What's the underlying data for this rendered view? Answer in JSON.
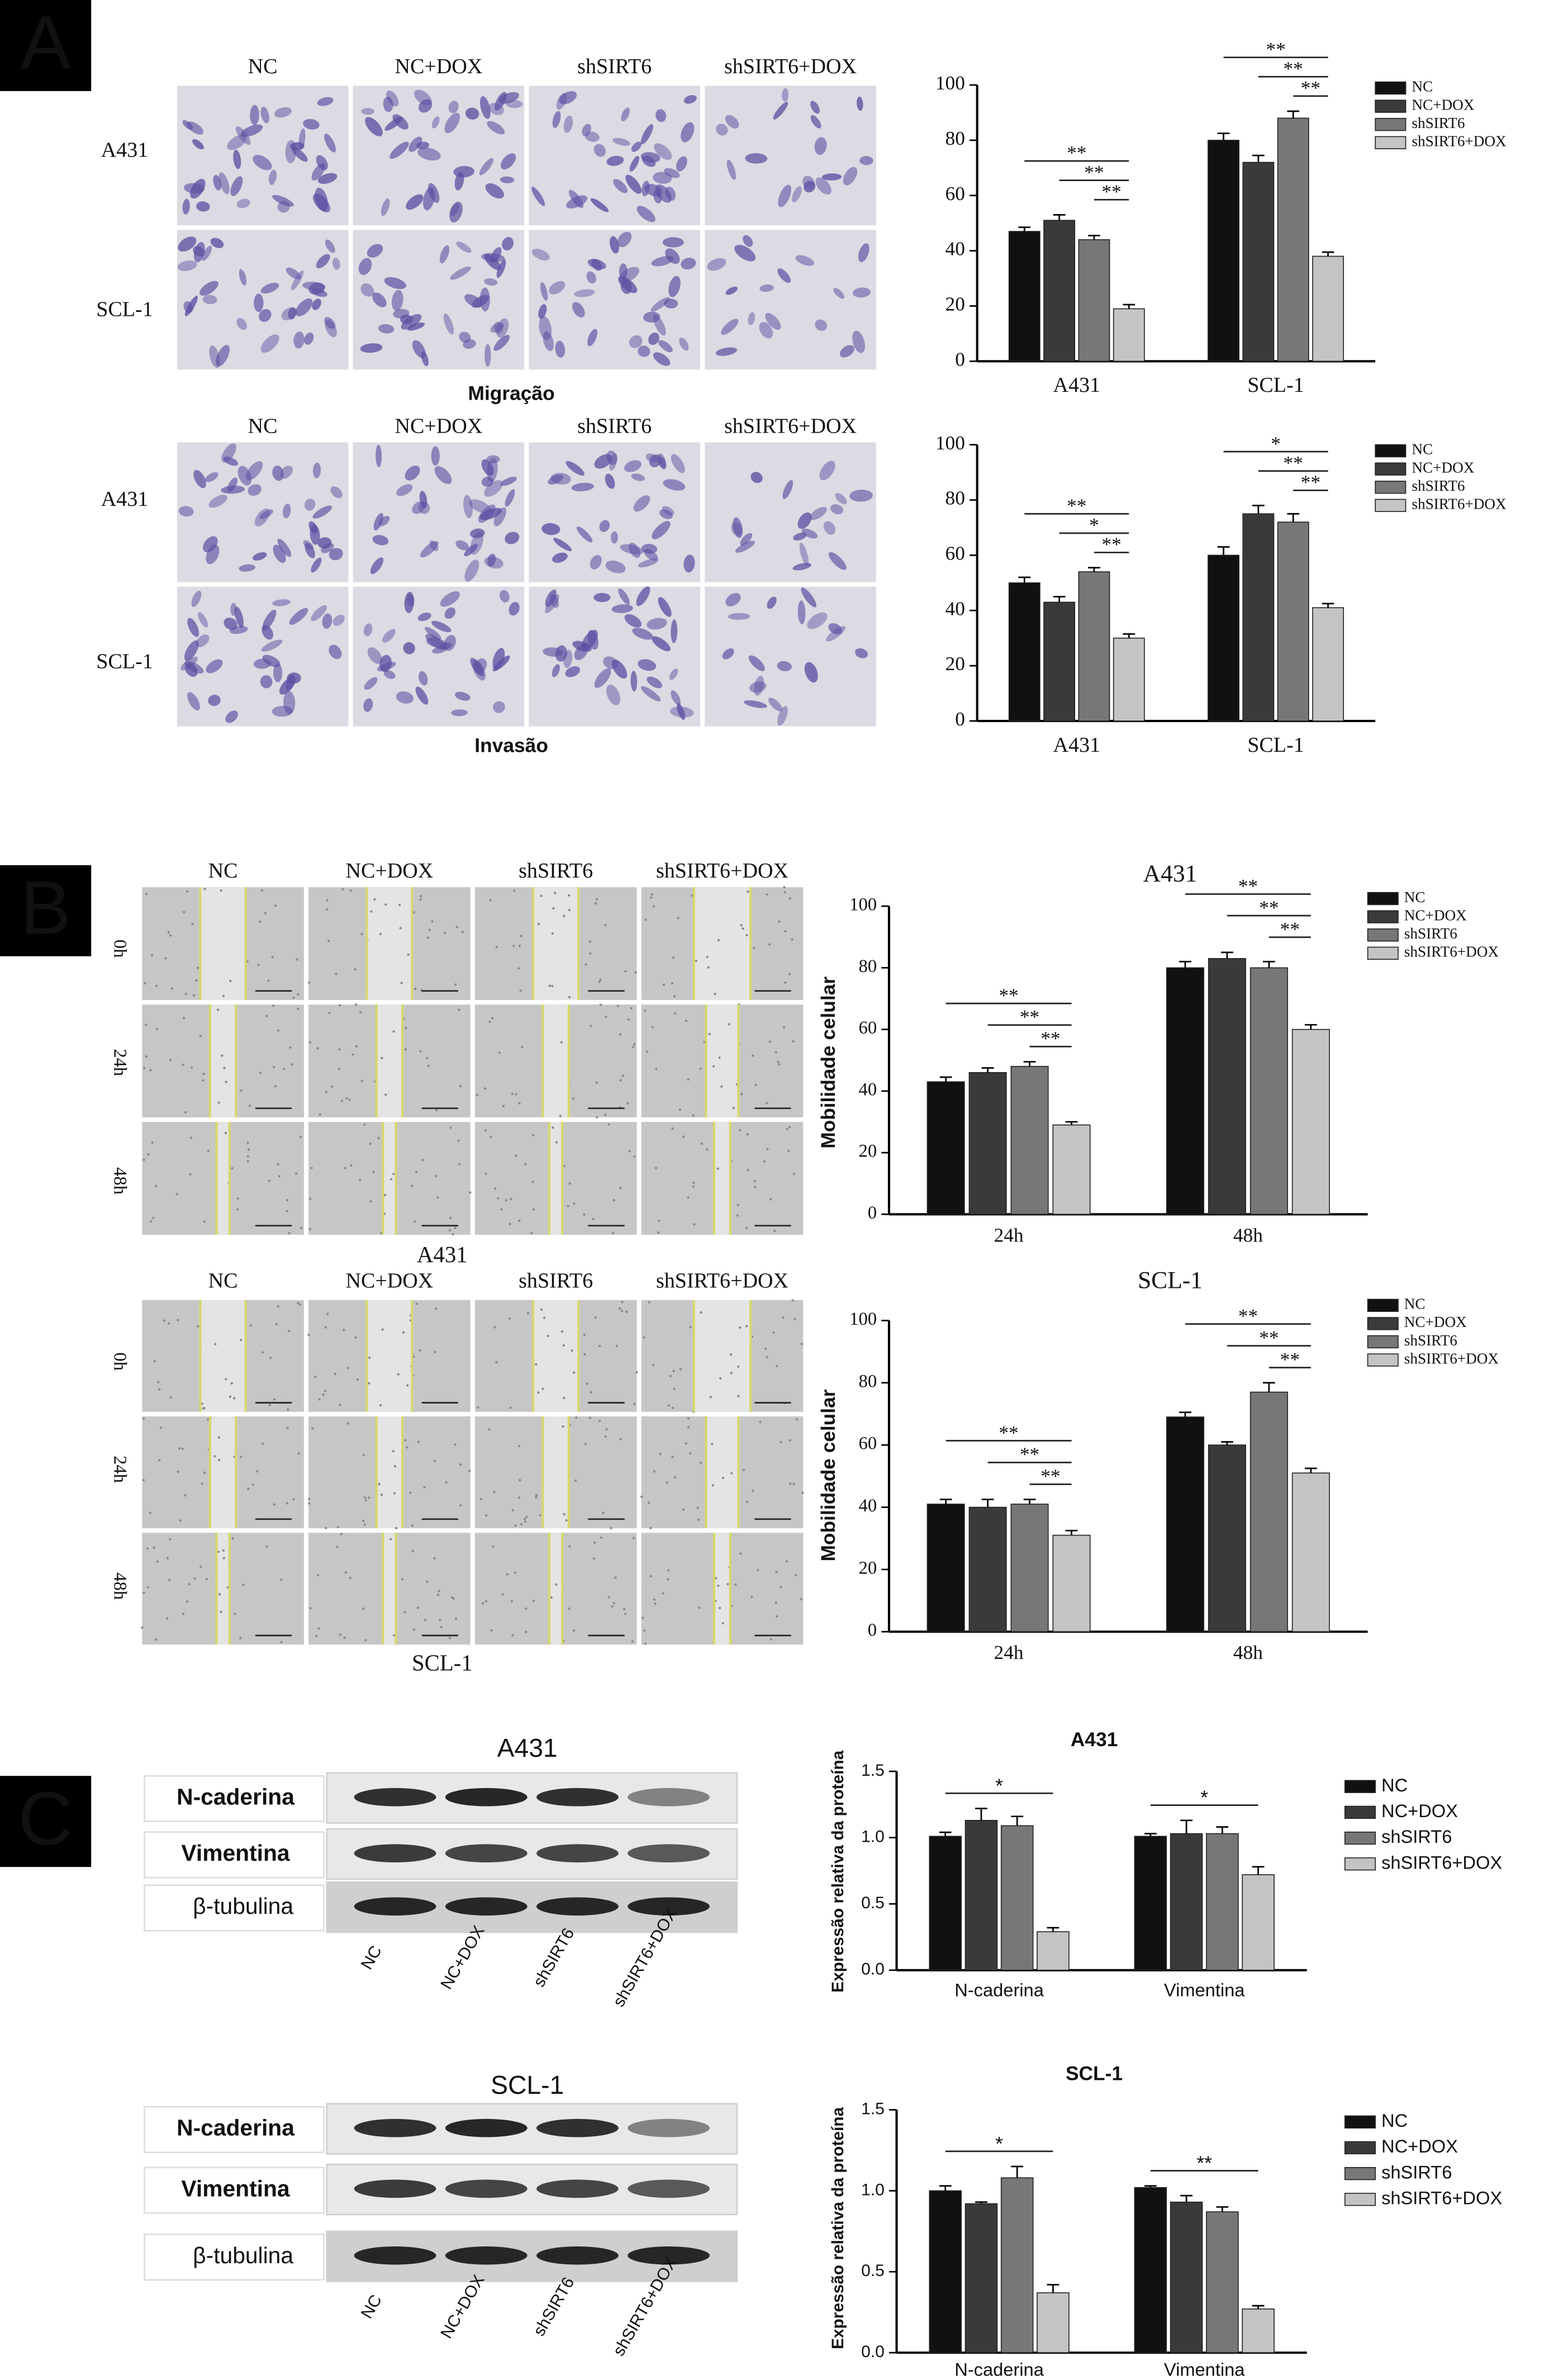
{
  "panels": [
    {
      "letter": "A",
      "blocks": [
        {
          "columns": [
            "NC",
            "NC+DOX",
            "shSIRT6",
            "shSIRT6+DOX"
          ],
          "rows": [
            "A431",
            "SCL-1"
          ],
          "caption": "Migração"
        },
        {
          "columns": [
            "NC",
            "NC+DOX",
            "shSIRT6",
            "shSIRT6+DOX"
          ],
          "rows": [
            "A431",
            "SCL-1"
          ],
          "caption": "Invasão"
        }
      ]
    },
    {
      "letter": "B",
      "blocks": [
        {
          "columns": [
            "NC",
            "NC+DOX",
            "shSIRT6",
            "shSIRT6+DOX"
          ],
          "rows": [
            "0h",
            "24h",
            "48h"
          ],
          "caption": "A431"
        },
        {
          "columns": [
            "NC",
            "NC+DOX",
            "shSIRT6",
            "shSIRT6+DOX"
          ],
          "rows": [
            "0h",
            "24h",
            "48h"
          ],
          "caption": "SCL-1"
        }
      ]
    },
    {
      "letter": "C",
      "blots": [
        {
          "title": "A431",
          "proteins": [
            "N-caderina",
            "Vimentina",
            "β-tubulina"
          ],
          "lanes": [
            "NC",
            "NC+DOX",
            "shSIRT6",
            "shSIRT6+DOX"
          ]
        },
        {
          "title": "SCL-1",
          "proteins": [
            "N-caderina",
            "Vimentina",
            "β-tubulina"
          ],
          "lanes": [
            "NC",
            "NC+DOX",
            "shSIRT6",
            "shSIRT6+DOX"
          ]
        }
      ]
    }
  ],
  "chart_data": [
    {
      "type": "bar",
      "categories": [
        "A431",
        "SCL-1"
      ],
      "ylim": [
        0,
        100
      ],
      "yticks": [
        0,
        20,
        40,
        60,
        80,
        100
      ],
      "series": [
        {
          "name": "NC",
          "color": "#111111",
          "values": [
            47,
            80
          ],
          "errors": [
            1.5,
            2.5
          ]
        },
        {
          "name": "NC+DOX",
          "color": "#3a3a3a",
          "values": [
            51,
            72
          ],
          "errors": [
            2,
            2.5
          ]
        },
        {
          "name": "shSIRT6",
          "color": "#777777",
          "values": [
            44,
            88
          ],
          "errors": [
            1.5,
            2.5
          ]
        },
        {
          "name": "shSIRT6+DOX",
          "color": "#c4c4c4",
          "values": [
            19,
            38
          ],
          "errors": [
            1.5,
            1.5
          ]
        }
      ],
      "significance": [
        {
          "category": 0,
          "series": [
            0,
            3
          ],
          "label": "**"
        },
        {
          "category": 0,
          "series": [
            1,
            3
          ],
          "label": "**"
        },
        {
          "category": 0,
          "series": [
            2,
            3
          ],
          "label": "**"
        },
        {
          "category": 1,
          "series": [
            0,
            3
          ],
          "label": "**"
        },
        {
          "category": 1,
          "series": [
            1,
            3
          ],
          "label": "**"
        },
        {
          "category": 1,
          "series": [
            2,
            3
          ],
          "label": "**"
        }
      ]
    },
    {
      "type": "bar",
      "categories": [
        "A431",
        "SCL-1"
      ],
      "ylim": [
        0,
        100
      ],
      "yticks": [
        0,
        20,
        40,
        60,
        80,
        100
      ],
      "series": [
        {
          "name": "NC",
          "color": "#111111",
          "values": [
            50,
            60
          ],
          "errors": [
            2,
            3
          ]
        },
        {
          "name": "NC+DOX",
          "color": "#3a3a3a",
          "values": [
            43,
            75
          ],
          "errors": [
            2,
            3
          ]
        },
        {
          "name": "shSIRT6",
          "color": "#777777",
          "values": [
            54,
            72
          ],
          "errors": [
            1.5,
            3
          ]
        },
        {
          "name": "shSIRT6+DOX",
          "color": "#c4c4c4",
          "values": [
            30,
            41
          ],
          "errors": [
            1.5,
            1.5
          ]
        }
      ],
      "significance": [
        {
          "category": 0,
          "series": [
            0,
            3
          ],
          "label": "**"
        },
        {
          "category": 0,
          "series": [
            1,
            3
          ],
          "label": "*"
        },
        {
          "category": 0,
          "series": [
            2,
            3
          ],
          "label": "**"
        },
        {
          "category": 1,
          "series": [
            0,
            3
          ],
          "label": "*"
        },
        {
          "category": 1,
          "series": [
            1,
            3
          ],
          "label": "**"
        },
        {
          "category": 1,
          "series": [
            2,
            3
          ],
          "label": "**"
        }
      ]
    },
    {
      "type": "bar",
      "title": "A431",
      "y_label": "Mobilidade celular",
      "categories": [
        "24h",
        "48h"
      ],
      "ylim": [
        0,
        100
      ],
      "yticks": [
        0,
        20,
        40,
        60,
        80,
        100
      ],
      "series": [
        {
          "name": "NC",
          "color": "#111111",
          "values": [
            43,
            80
          ],
          "errors": [
            1.5,
            2
          ]
        },
        {
          "name": "NC+DOX",
          "color": "#3a3a3a",
          "values": [
            46,
            83
          ],
          "errors": [
            1.5,
            2
          ]
        },
        {
          "name": "shSIRT6",
          "color": "#777777",
          "values": [
            48,
            80
          ],
          "errors": [
            1.5,
            2
          ]
        },
        {
          "name": "shSIRT6+DOX",
          "color": "#c4c4c4",
          "values": [
            29,
            60
          ],
          "errors": [
            1,
            1.5
          ]
        }
      ],
      "significance": [
        {
          "category": 0,
          "series": [
            0,
            3
          ],
          "label": "**"
        },
        {
          "category": 0,
          "series": [
            1,
            3
          ],
          "label": "**"
        },
        {
          "category": 0,
          "series": [
            2,
            3
          ],
          "label": "**"
        },
        {
          "category": 1,
          "series": [
            0,
            3
          ],
          "label": "**"
        },
        {
          "category": 1,
          "series": [
            1,
            3
          ],
          "label": "**"
        },
        {
          "category": 1,
          "series": [
            2,
            3
          ],
          "label": "**"
        }
      ]
    },
    {
      "type": "bar",
      "title": "SCL-1",
      "y_label": "Mobilidade celular",
      "categories": [
        "24h",
        "48h"
      ],
      "ylim": [
        0,
        100
      ],
      "yticks": [
        0,
        20,
        40,
        60,
        80,
        100
      ],
      "series": [
        {
          "name": "NC",
          "color": "#111111",
          "values": [
            41,
            69
          ],
          "errors": [
            1.5,
            1.5
          ]
        },
        {
          "name": "NC+DOX",
          "color": "#3a3a3a",
          "values": [
            40,
            60
          ],
          "errors": [
            2.5,
            1
          ]
        },
        {
          "name": "shSIRT6",
          "color": "#777777",
          "values": [
            41,
            77
          ],
          "errors": [
            1.5,
            3
          ]
        },
        {
          "name": "shSIRT6+DOX",
          "color": "#c4c4c4",
          "values": [
            31,
            51
          ],
          "errors": [
            1.5,
            1.5
          ]
        }
      ],
      "significance": [
        {
          "category": 0,
          "series": [
            0,
            3
          ],
          "label": "**"
        },
        {
          "category": 0,
          "series": [
            1,
            3
          ],
          "label": "**"
        },
        {
          "category": 0,
          "series": [
            2,
            3
          ],
          "label": "**"
        },
        {
          "category": 1,
          "series": [
            0,
            3
          ],
          "label": "**"
        },
        {
          "category": 1,
          "series": [
            1,
            3
          ],
          "label": "**"
        },
        {
          "category": 1,
          "series": [
            2,
            3
          ],
          "label": "**"
        }
      ]
    },
    {
      "type": "bar",
      "title": "A431",
      "y_label": "Expressão relativa da proteína",
      "categories": [
        "N-caderina",
        "Vimentina"
      ],
      "ylim": [
        0,
        1.5
      ],
      "yticks": [
        {
          "value": 0,
          "label": "0.0"
        },
        0.5,
        {
          "value": 1,
          "label": "1.0"
        },
        1.5
      ],
      "series": [
        {
          "name": "NC",
          "color": "#111111",
          "values": [
            1.01,
            1.01
          ],
          "errors": [
            0.03,
            0.02
          ]
        },
        {
          "name": "NC+DOX",
          "color": "#3a3a3a",
          "values": [
            1.13,
            1.03
          ],
          "errors": [
            0.09,
            0.1
          ]
        },
        {
          "name": "shSIRT6",
          "color": "#777777",
          "values": [
            1.09,
            1.03
          ],
          "errors": [
            0.07,
            0.05
          ]
        },
        {
          "name": "shSIRT6+DOX",
          "color": "#c4c4c4",
          "values": [
            0.29,
            0.72
          ],
          "errors": [
            0.03,
            0.06
          ]
        }
      ],
      "significance": [
        {
          "category": 0,
          "series": [
            0,
            3
          ],
          "label": "*"
        },
        {
          "category": 1,
          "series": [
            0,
            3
          ],
          "label": "*"
        }
      ]
    },
    {
      "type": "bar",
      "title": "SCL-1",
      "y_label": "Expressão relativa da proteína",
      "categories": [
        "N-caderina",
        "Vimentina"
      ],
      "ylim": [
        0,
        1.5
      ],
      "yticks": [
        {
          "value": 0,
          "label": "0.0"
        },
        0.5,
        {
          "value": 1,
          "label": "1.0"
        },
        1.5
      ],
      "series": [
        {
          "name": "NC",
          "color": "#111111",
          "values": [
            1.0,
            1.02
          ],
          "errors": [
            0.03,
            0.01
          ]
        },
        {
          "name": "NC+DOX",
          "color": "#3a3a3a",
          "values": [
            0.92,
            0.93
          ],
          "errors": [
            0.01,
            0.04
          ]
        },
        {
          "name": "shSIRT6",
          "color": "#777777",
          "values": [
            1.08,
            0.87
          ],
          "errors": [
            0.07,
            0.03
          ]
        },
        {
          "name": "shSIRT6+DOX",
          "color": "#c4c4c4",
          "values": [
            0.37,
            0.27
          ],
          "errors": [
            0.05,
            0.02
          ]
        }
      ],
      "significance": [
        {
          "category": 0,
          "series": [
            0,
            3
          ],
          "label": "*"
        },
        {
          "category": 1,
          "series": [
            0,
            3
          ],
          "label": "**"
        }
      ]
    }
  ]
}
